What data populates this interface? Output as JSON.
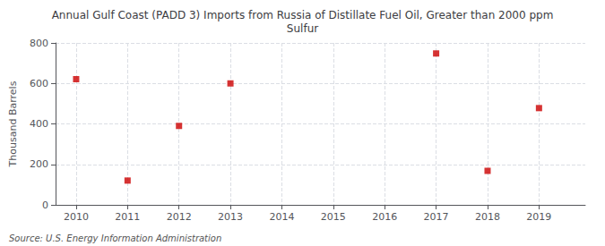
{
  "chart_data": {
    "type": "scatter",
    "title": "Annual Gulf Coast (PADD 3) Imports from Russia of Distillate Fuel Oil, Greater than 2000 ppm\nSulfur",
    "ylabel": "Thousand Barrels",
    "source": "Source: U.S. Energy Information Administration",
    "x": [
      2010,
      2011,
      2012,
      2013,
      2017,
      2018,
      2019
    ],
    "values": [
      621,
      120,
      390,
      600,
      748,
      168,
      478
    ],
    "xlim": [
      2009.6,
      2019.9
    ],
    "xticks": [
      2010,
      2011,
      2012,
      2013,
      2014,
      2015,
      2016,
      2017,
      2018,
      2019
    ],
    "ylim": [
      0,
      800
    ],
    "yticks": [
      0,
      200,
      400,
      600,
      800
    ],
    "grid": true,
    "color": "#cc0000",
    "marker": "square"
  }
}
